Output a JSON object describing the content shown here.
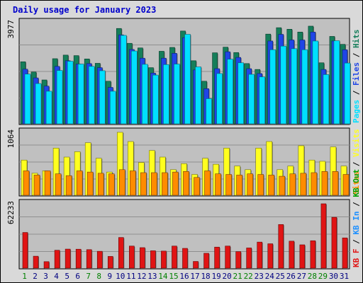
{
  "title": "Daily usage for January 2023",
  "colors": {
    "hits": "#157e5a",
    "files": "#1f45e6",
    "pages": "#00e0ff",
    "visits": "#ffff1f",
    "sites": "#ff8c00",
    "kbin": "#1e90ff",
    "kbout": "#00a000",
    "kbf": "#e01414",
    "axis_label_weekday": "#000080",
    "axis_label_weekend": "#008000",
    "panel": "#c0c0c0"
  },
  "chart_data": [
    {
      "type": "bar",
      "panel": "hits-files-pages",
      "categories": [
        "1",
        "2",
        "3",
        "4",
        "5",
        "6",
        "7",
        "8",
        "9",
        "10",
        "11",
        "12",
        "13",
        "14",
        "15",
        "16",
        "17",
        "18",
        "19",
        "20",
        "21",
        "22",
        "23",
        "24",
        "25",
        "26",
        "27",
        "28",
        "29",
        "30",
        "31"
      ],
      "ylim": [
        0,
        3977
      ],
      "y_tick_label": "3977",
      "legend": [
        {
          "text": "Pages",
          "color": "#00e0ff"
        },
        {
          "text": " / ",
          "color": "#000000"
        },
        {
          "text": "Files",
          "color": "#1f45e6"
        },
        {
          "text": " / ",
          "color": "#000000"
        },
        {
          "text": "Hits",
          "color": "#157e5a"
        }
      ],
      "series": [
        {
          "name": "Hits",
          "values": [
            2450,
            2050,
            1740,
            2570,
            2710,
            2690,
            2560,
            2390,
            1690,
            3750,
            3170,
            2990,
            2220,
            2860,
            3010,
            3650,
            2490,
            1690,
            2800,
            3020,
            2810,
            2380,
            2150,
            3530,
            3780,
            3720,
            3610,
            3840,
            2410,
            3440,
            3130
          ]
        },
        {
          "name": "Files",
          "values": [
            2160,
            1820,
            1500,
            2270,
            2490,
            2360,
            2380,
            2220,
            1450,
            3500,
            2930,
            2590,
            2010,
            2590,
            2780,
            3390,
            2130,
            1400,
            2180,
            2840,
            2620,
            2180,
            1990,
            3260,
            3520,
            3300,
            3300,
            3610,
            2150,
            3260,
            2920
          ]
        },
        {
          "name": "Pages",
          "values": [
            1970,
            1600,
            1300,
            2110,
            2470,
            2360,
            2270,
            2100,
            1300,
            3480,
            2870,
            2350,
            1930,
            2340,
            2360,
            3520,
            2250,
            1010,
            1990,
            2550,
            2410,
            1960,
            1860,
            2920,
            3060,
            2960,
            2920,
            3260,
            1950,
            3270,
            2400
          ]
        }
      ]
    },
    {
      "type": "bar",
      "panel": "visits-sites",
      "categories": [
        "1",
        "2",
        "3",
        "4",
        "5",
        "6",
        "7",
        "8",
        "9",
        "10",
        "11",
        "12",
        "13",
        "14",
        "15",
        "16",
        "17",
        "18",
        "19",
        "20",
        "21",
        "22",
        "23",
        "24",
        "25",
        "26",
        "27",
        "28",
        "29",
        "30",
        "31"
      ],
      "ylim": [
        0,
        1064
      ],
      "y_tick_label": "1064",
      "legend": [
        {
          "text": "Sites",
          "color": "#ff8c00"
        },
        {
          "text": " / ",
          "color": "#000000"
        },
        {
          "text": "Visits",
          "color": "#ffff1f"
        }
      ],
      "series": [
        {
          "name": "Visits",
          "values": [
            600,
            380,
            420,
            800,
            650,
            740,
            890,
            630,
            400,
            1064,
            910,
            560,
            760,
            650,
            440,
            540,
            360,
            630,
            530,
            800,
            500,
            440,
            800,
            910,
            440,
            500,
            840,
            600,
            580,
            820,
            500
          ]
        },
        {
          "name": "Sites",
          "values": [
            420,
            350,
            420,
            370,
            340,
            420,
            400,
            380,
            370,
            440,
            420,
            390,
            390,
            390,
            400,
            410,
            310,
            420,
            370,
            360,
            350,
            370,
            360,
            350,
            330,
            370,
            380,
            390,
            410,
            410,
            360
          ]
        }
      ]
    },
    {
      "type": "bar",
      "panel": "kbytes",
      "categories": [
        "1",
        "2",
        "3",
        "4",
        "5",
        "6",
        "7",
        "8",
        "9",
        "10",
        "11",
        "12",
        "13",
        "14",
        "15",
        "16",
        "17",
        "18",
        "19",
        "20",
        "21",
        "22",
        "23",
        "24",
        "25",
        "26",
        "27",
        "28",
        "29",
        "30",
        "31"
      ],
      "ylim": [
        0,
        62233
      ],
      "y_tick_label": "62233",
      "legend": [
        {
          "text": "KB F",
          "color": "#e01414"
        },
        {
          "text": " / ",
          "color": "#000000"
        },
        {
          "text": "KB In",
          "color": "#1e90ff"
        },
        {
          "text": " / ",
          "color": "#000000"
        },
        {
          "text": "KB Out",
          "color": "#00a000"
        }
      ],
      "series": [
        {
          "name": "KB F",
          "values": [
            34800,
            12100,
            6900,
            17800,
            18900,
            18800,
            18400,
            16800,
            11900,
            30000,
            21800,
            20300,
            17300,
            17000,
            21800,
            19600,
            7100,
            14900,
            20800,
            21800,
            16500,
            20000,
            25600,
            24000,
            42400,
            26500,
            23000,
            26900,
            62233,
            49300,
            29600
          ]
        }
      ]
    }
  ],
  "x_labels": [
    {
      "text": "1",
      "weekend": true
    },
    {
      "text": "2",
      "weekend": false
    },
    {
      "text": "3",
      "weekend": false
    },
    {
      "text": "4",
      "weekend": false
    },
    {
      "text": "5",
      "weekend": false
    },
    {
      "text": "6",
      "weekend": false
    },
    {
      "text": "7",
      "weekend": true
    },
    {
      "text": "8",
      "weekend": true
    },
    {
      "text": "9",
      "weekend": false
    },
    {
      "text": "10",
      "weekend": false
    },
    {
      "text": "11",
      "weekend": false
    },
    {
      "text": "12",
      "weekend": false
    },
    {
      "text": "13",
      "weekend": false
    },
    {
      "text": "14",
      "weekend": true
    },
    {
      "text": "15",
      "weekend": true
    },
    {
      "text": "16",
      "weekend": false
    },
    {
      "text": "17",
      "weekend": false
    },
    {
      "text": "18",
      "weekend": false
    },
    {
      "text": "19",
      "weekend": false
    },
    {
      "text": "20",
      "weekend": false
    },
    {
      "text": "21",
      "weekend": true
    },
    {
      "text": "22",
      "weekend": true
    },
    {
      "text": "23",
      "weekend": false
    },
    {
      "text": "24",
      "weekend": false
    },
    {
      "text": "25",
      "weekend": false
    },
    {
      "text": "26",
      "weekend": false
    },
    {
      "text": "27",
      "weekend": false
    },
    {
      "text": "28",
      "weekend": true
    },
    {
      "text": "29",
      "weekend": true
    },
    {
      "text": "30",
      "weekend": false
    },
    {
      "text": "31",
      "weekend": false
    }
  ]
}
